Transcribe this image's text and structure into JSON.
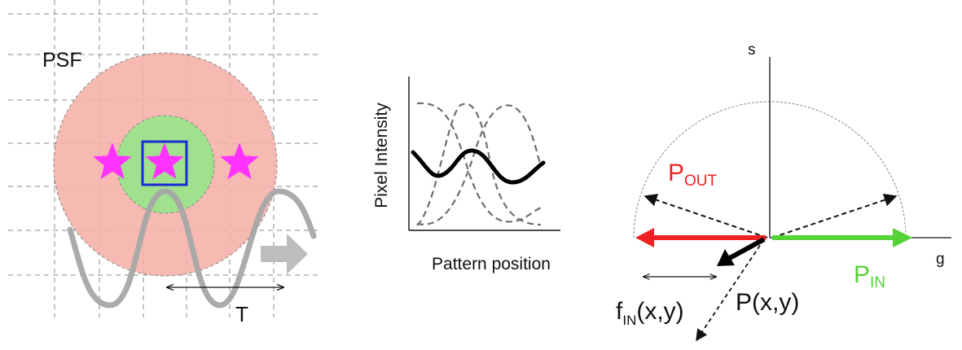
{
  "panel_psf": {
    "psf_label": "PSF",
    "period_label": "T",
    "colors": {
      "outer_disk": "#f6b0a8",
      "inner_disk": "#9be38b",
      "stars": "#ff33ff",
      "pixel_box": "#1a2bd6",
      "wave": "#a6a6a6",
      "grid": "#8a8a8a"
    },
    "icons": [
      "star-icon",
      "arrow-right-icon"
    ]
  },
  "panel_intensity": {
    "ylabel": "Pixel Intensity",
    "xlabel": "Pattern position"
  },
  "panel_phasor": {
    "s_axis": "s",
    "g_axis": "g",
    "p_out": {
      "main": "P",
      "sub": "OUT",
      "color": "#ee2222"
    },
    "p_in": {
      "main": "P",
      "sub": "IN",
      "color": "#55d235"
    },
    "p_xy": "P(x,y)",
    "f_in": {
      "main": "f",
      "sub": "IN",
      "rest": "(x,y)"
    }
  }
}
